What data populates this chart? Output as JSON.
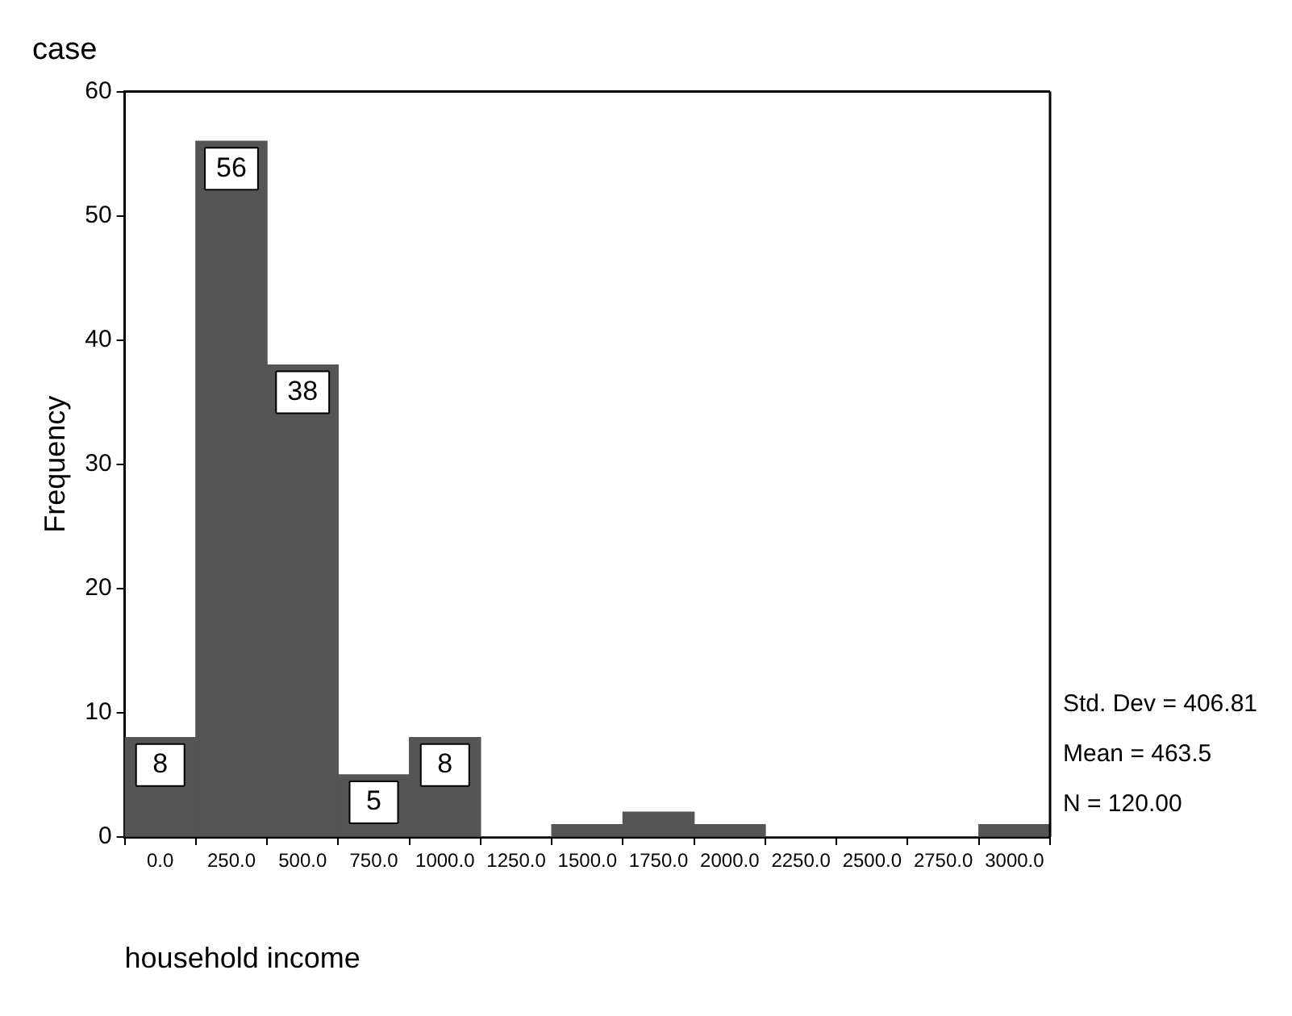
{
  "chart_data": {
    "type": "histogram",
    "title": "case",
    "xlabel": "household income",
    "ylabel": "Frequency",
    "bins": [
      -125,
      125,
      375,
      625,
      875,
      1125,
      1375,
      1625,
      1875,
      2125,
      2375,
      2625,
      2875,
      3125
    ],
    "values": [
      8,
      56,
      38,
      5,
      8,
      0,
      1,
      2,
      1,
      0,
      0,
      0,
      1
    ],
    "value_labels": [
      "8",
      "56",
      "38",
      "5",
      "8",
      null,
      null,
      null,
      null,
      null,
      null,
      null,
      null
    ],
    "color": "#555555",
    "xlim": [
      -125,
      3125
    ],
    "xticks": [
      {
        "value": 0,
        "label": "0.0"
      },
      {
        "value": 250,
        "label": "250.0"
      },
      {
        "value": 500,
        "label": "500.0"
      },
      {
        "value": 750,
        "label": "750.0"
      },
      {
        "value": 1000,
        "label": "1000.0"
      },
      {
        "value": 1250,
        "label": "1250.0"
      },
      {
        "value": 1500,
        "label": "1500.0"
      },
      {
        "value": 1750,
        "label": "1750.0"
      },
      {
        "value": 2000,
        "label": "2000.0"
      },
      {
        "value": 2250,
        "label": "2250.0"
      },
      {
        "value": 2500,
        "label": "2500.0"
      },
      {
        "value": 2750,
        "label": "2750.0"
      },
      {
        "value": 3000,
        "label": "3000.0"
      }
    ],
    "ylim": [
      0,
      60
    ],
    "yticks": [
      0,
      10,
      20,
      30,
      40,
      50,
      60
    ],
    "grid": false,
    "legend": false,
    "annotations": [
      "Std. Dev = 406.81",
      "Mean = 463.5",
      "N = 120.00"
    ]
  }
}
